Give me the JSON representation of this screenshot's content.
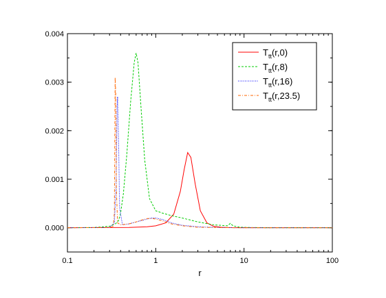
{
  "chart_data": {
    "type": "line",
    "title": "",
    "xlabel": "r",
    "ylabel": "",
    "xscale": "log",
    "xlim": [
      0.1,
      100
    ],
    "ylim": [
      -0.0005,
      0.004
    ],
    "grid": false,
    "legend_position": "top-right",
    "x_ticks": [
      0.1,
      1,
      10,
      100
    ],
    "x_tick_labels": [
      "0.1",
      "1",
      "10",
      "100"
    ],
    "y_ticks": [
      0,
      0.001,
      0.002,
      0.003,
      0.004
    ],
    "y_tick_labels": [
      "0.000",
      "0.001",
      "0.002",
      "0.003",
      "0.004"
    ],
    "series": [
      {
        "name_main": "T",
        "name_sub": "tt",
        "name_rest": "(r,0)",
        "color": "#ff0000",
        "dash": "solid",
        "x": [
          0.1,
          0.5,
          0.8,
          1.0,
          1.3,
          1.6,
          1.9,
          2.1,
          2.3,
          2.5,
          2.8,
          3.2,
          3.8,
          4.5,
          5.5,
          7,
          10,
          100
        ],
        "y": [
          0,
          5e-06,
          2e-05,
          4e-05,
          0.0001,
          0.00028,
          0.00075,
          0.0012,
          0.00155,
          0.00145,
          0.0009,
          0.00035,
          0.0001,
          3e-05,
          1e-05,
          3e-06,
          0,
          0
        ]
      },
      {
        "name_main": "T",
        "name_sub": "tt",
        "name_rest": "(r,8)",
        "color": "#00cc00",
        "dash": "dashed",
        "x": [
          0.1,
          0.2,
          0.3,
          0.35,
          0.38,
          0.4,
          0.43,
          0.47,
          0.52,
          0.57,
          0.6,
          0.63,
          0.68,
          0.75,
          0.85,
          1.0,
          1.2,
          1.5,
          2.0,
          3.0,
          4.5,
          6.5,
          7.0,
          7.5,
          9,
          12,
          20,
          100
        ],
        "y": [
          0,
          5e-06,
          3e-05,
          8e-05,
          0.00015,
          0.0003,
          0.0007,
          0.0015,
          0.0026,
          0.0034,
          0.0036,
          0.0034,
          0.0025,
          0.0014,
          0.0006,
          0.00035,
          0.0003,
          0.00025,
          0.0002,
          0.00012,
          6e-05,
          4e-05,
          9e-05,
          4e-05,
          1e-05,
          5e-06,
          0,
          0
        ]
      },
      {
        "name_main": "T",
        "name_sub": "tt",
        "name_rest": "(r,16)",
        "color": "#0000ff",
        "dash": "dotted",
        "x": [
          0.1,
          0.3,
          0.34,
          0.355,
          0.365,
          0.37,
          0.38,
          0.39,
          0.42,
          0.5,
          0.6,
          0.7,
          0.8,
          0.9,
          1.0,
          1.2,
          1.5,
          2.0,
          3.0,
          5.0,
          8.0,
          20,
          100
        ],
        "y": [
          0,
          5e-06,
          0.0001,
          0.0008,
          0.0025,
          0.0027,
          0.0017,
          0.0004,
          6e-05,
          8e-05,
          0.00012,
          0.00015,
          0.00018,
          0.0002,
          0.0002,
          0.00017,
          0.0001,
          5e-05,
          2e-05,
          5e-06,
          1e-06,
          0,
          0
        ]
      },
      {
        "name_main": "T",
        "name_sub": "tt",
        "name_rest": "(r,23.5)",
        "color": "#ff6600",
        "dash": "dashdot",
        "x": [
          0.1,
          0.3,
          0.33,
          0.34,
          0.347,
          0.352,
          0.358,
          0.37,
          0.4,
          0.5,
          0.6,
          0.7,
          0.8,
          0.9,
          1.0,
          1.2,
          1.5,
          2.0,
          3.0,
          5.0,
          8.0,
          20,
          100
        ],
        "y": [
          0,
          5e-06,
          3e-05,
          0.0003,
          0.0031,
          0.0028,
          0.0008,
          0.0001,
          6e-05,
          8e-05,
          0.00012,
          0.00016,
          0.00019,
          0.00019,
          0.00018,
          0.00014,
          8e-05,
          4e-05,
          1e-05,
          3e-06,
          1e-06,
          0,
          0
        ]
      }
    ]
  }
}
